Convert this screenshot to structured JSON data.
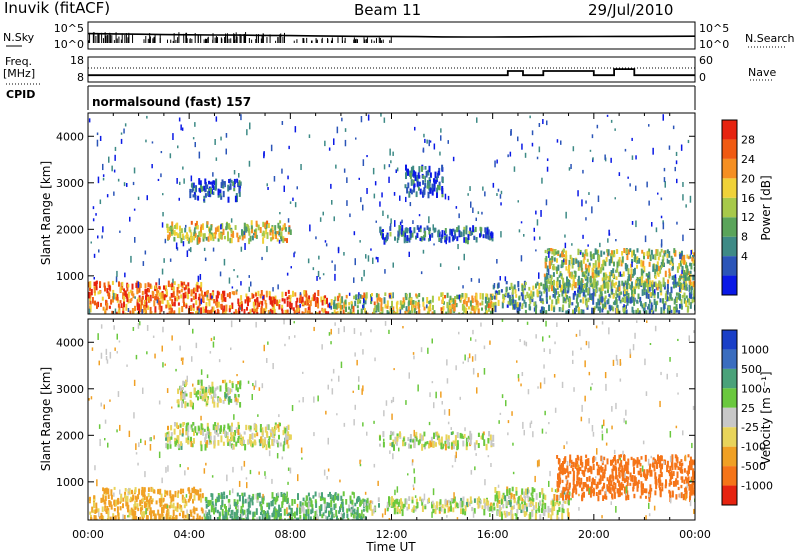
{
  "header": {
    "title": "Inuvik (fitACF)",
    "beam": "Beam 11",
    "date": "29/Jul/2010"
  },
  "side_labels": {
    "nsky": "N.Sky",
    "nsearch": "N.Search",
    "freq_line1": "Freq.",
    "freq_line2": "[MHz]",
    "nave": "Nave",
    "cpid": "CPID",
    "cpid_value": "normalsound (fast) 157"
  },
  "ticks": {
    "noise_left": [
      "10^5",
      "10^0"
    ],
    "noise_right": [
      "10^5",
      "10^0"
    ],
    "freq_left": [
      "18",
      "8"
    ],
    "freq_right": [
      "60",
      "0"
    ],
    "range": [
      "4000",
      "3000",
      "2000",
      "1000"
    ],
    "time": [
      "00:00",
      "04:00",
      "08:00",
      "12:00",
      "16:00",
      "20:00",
      "00:00"
    ],
    "power": [
      "28",
      "24",
      "20",
      "16",
      "12",
      "8",
      "4"
    ],
    "velocity": [
      "1000",
      "500",
      "100",
      "25",
      "-25",
      "-100",
      "-500",
      "-1000"
    ]
  },
  "axis_labels": {
    "ylabel": "Slant Range [km]",
    "xlabel": "Time UT",
    "power_cb": "Power [dB]",
    "velocity_cb": "Velocity [m s⁻¹]"
  },
  "colors": {
    "power": [
      "#0a19e6",
      "#2b55b8",
      "#3e8a86",
      "#5aa45a",
      "#a7c94a",
      "#f0d238",
      "#f58f22",
      "#f05a12",
      "#e62310"
    ],
    "velocity": [
      "#1a3fc7",
      "#3a6dbf",
      "#4aa27a",
      "#6ac83e",
      "#c8c8c8",
      "#e8d45a",
      "#f0a024",
      "#f57418",
      "#e62310"
    ]
  },
  "chart_data": [
    {
      "type": "line",
      "title": "",
      "xlabel": "",
      "ylabel": "",
      "series": [
        {
          "name": "N.Sky",
          "values": [
            800,
            700,
            600,
            500,
            450,
            400,
            380,
            340,
            300,
            260,
            220,
            200,
            200,
            180,
            160,
            150,
            150,
            160,
            170,
            180,
            190,
            200,
            200,
            210,
            220,
            240
          ]
        }
      ],
      "x_hours": [
        0,
        1,
        2,
        3,
        4,
        5,
        6,
        7,
        8,
        9,
        10,
        11,
        12,
        13,
        14,
        15,
        16,
        17,
        18,
        19,
        20,
        21,
        22,
        23,
        24,
        24
      ],
      "ylim": [
        1,
        100000
      ],
      "log_scale": true
    },
    {
      "type": "line",
      "title": "",
      "ylabel": "",
      "series": [
        {
          "name": "Freq.",
          "x_hours": [
            0,
            16.6,
            16.6,
            17.2,
            17.2,
            18.0,
            18.0,
            20.0,
            20.0,
            20.8,
            20.8,
            21.6,
            21.6,
            24
          ],
          "values": [
            10.3,
            10.3,
            12.3,
            12.3,
            10.3,
            10.3,
            12.3,
            12.3,
            10.3,
            10.3,
            13.2,
            13.2,
            10.3,
            10.3
          ]
        }
      ],
      "ylim": [
        8,
        18
      ]
    },
    {
      "type": "heatmap",
      "title": "",
      "quantity": "Power [dB]",
      "xlabel": "Time UT",
      "ylabel": "Slant Range [km]",
      "xlim_hours": [
        0,
        24
      ],
      "ylim_km": [
        180,
        4500
      ],
      "color_levels": [
        4,
        8,
        12,
        16,
        20,
        24,
        28
      ],
      "echo_regions": [
        {
          "t": [
            0.0,
            4.5
          ],
          "r": [
            180,
            900
          ],
          "value": 25
        },
        {
          "t": [
            4.5,
            9.5
          ],
          "r": [
            180,
            700
          ],
          "value": 26
        },
        {
          "t": [
            9.5,
            16.0
          ],
          "r": [
            180,
            650
          ],
          "value": 18
        },
        {
          "t": [
            16.0,
            24.0
          ],
          "r": [
            250,
            900
          ],
          "value": 12
        },
        {
          "t": [
            18.0,
            24.0
          ],
          "r": [
            800,
            1600
          ],
          "value": 16
        },
        {
          "t": [
            3.0,
            8.0
          ],
          "r": [
            1800,
            2200
          ],
          "value": 18
        },
        {
          "t": [
            11.5,
            16.0
          ],
          "r": [
            1800,
            2100
          ],
          "value": 8
        },
        {
          "t": [
            4.0,
            6.0
          ],
          "r": [
            2700,
            3100
          ],
          "value": 6
        },
        {
          "t": [
            12.5,
            14.0
          ],
          "r": [
            2800,
            3400
          ],
          "value": 6
        }
      ]
    },
    {
      "type": "heatmap",
      "title": "",
      "quantity": "Velocity [m/s]",
      "xlabel": "Time UT",
      "ylabel": "Slant Range [km]",
      "xlim_hours": [
        0,
        24
      ],
      "ylim_km": [
        180,
        4500
      ],
      "color_levels": [
        1000,
        500,
        100,
        25,
        -25,
        -100,
        -500,
        -1000
      ],
      "echo_regions": [
        {
          "t": [
            0.0,
            4.5
          ],
          "r": [
            180,
            900
          ],
          "value": -150
        },
        {
          "t": [
            4.5,
            11.0
          ],
          "r": [
            180,
            800
          ],
          "value": 120
        },
        {
          "t": [
            11.0,
            16.0
          ],
          "r": [
            400,
            700
          ],
          "value": 0
        },
        {
          "t": [
            16.0,
            19.0
          ],
          "r": [
            300,
            900
          ],
          "value": 0
        },
        {
          "t": [
            18.5,
            24.0
          ],
          "r": [
            700,
            1600
          ],
          "value": -450
        },
        {
          "t": [
            3.0,
            8.0
          ],
          "r": [
            1800,
            2300
          ],
          "value": 0
        },
        {
          "t": [
            11.5,
            16.0
          ],
          "r": [
            1800,
            2100
          ],
          "value": 0
        },
        {
          "t": [
            3.5,
            6.0
          ],
          "r": [
            2700,
            3200
          ],
          "value": 0
        }
      ]
    }
  ]
}
